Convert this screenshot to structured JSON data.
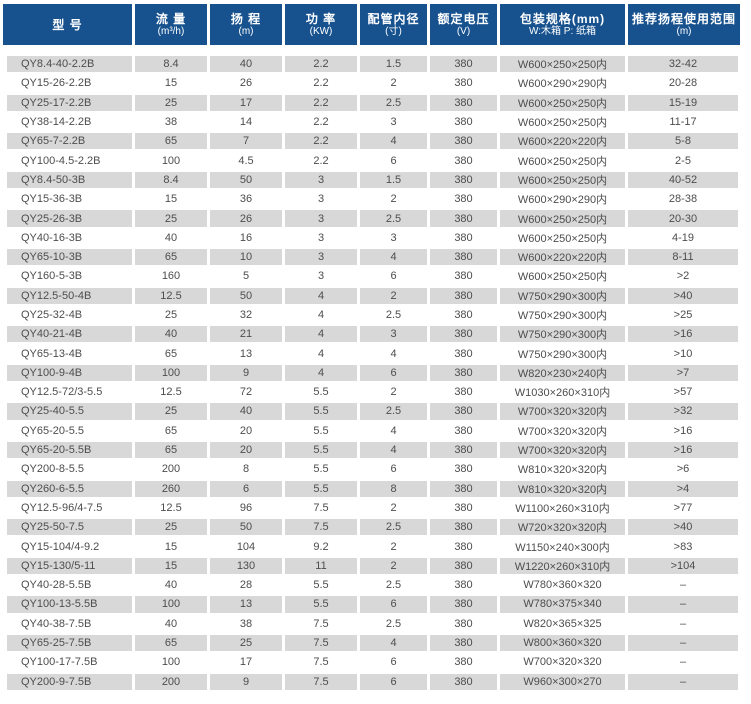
{
  "colors": {
    "header_bg": "#17528f",
    "header_text": "#ffffff",
    "row_alt_bg": "#d8d8d8",
    "row_bg": "#ffffff",
    "body_text": "#4d4d4d"
  },
  "chart_data": {
    "type": "table",
    "columns": [
      {
        "id": "model",
        "label": "型 号",
        "unit": ""
      },
      {
        "id": "flow",
        "label": "流 量",
        "unit": "(m³/h)"
      },
      {
        "id": "head",
        "label": "扬 程",
        "unit": "(m)"
      },
      {
        "id": "power",
        "label": "功 率",
        "unit": "(KW)"
      },
      {
        "id": "pipe",
        "label": "配管内径",
        "unit": "(寸)"
      },
      {
        "id": "voltage",
        "label": "额定电压",
        "unit": "(V)"
      },
      {
        "id": "packing",
        "label": "包装规格(mm)",
        "unit": "W:木箱 P: 纸箱"
      },
      {
        "id": "range",
        "label": "推荐扬程使用范围",
        "unit": "(m)"
      }
    ],
    "rows": [
      [
        "QY8.4-40-2.2B",
        "8.4",
        "40",
        "2.2",
        "1.5",
        "380",
        "W600×250×250内",
        "32-42"
      ],
      [
        "QY15-26-2.2B",
        "15",
        "26",
        "2.2",
        "2",
        "380",
        "W600×290×290内",
        "20-28"
      ],
      [
        "QY25-17-2.2B",
        "25",
        "17",
        "2.2",
        "2.5",
        "380",
        "W600×250×250内",
        "15-19"
      ],
      [
        "QY38-14-2.2B",
        "38",
        "14",
        "2.2",
        "3",
        "380",
        "W600×250×250内",
        "11-17"
      ],
      [
        "QY65-7-2.2B",
        "65",
        "7",
        "2.2",
        "4",
        "380",
        "W600×220×220内",
        "5-8"
      ],
      [
        "QY100-4.5-2.2B",
        "100",
        "4.5",
        "2.2",
        "6",
        "380",
        "W600×250×250内",
        "2-5"
      ],
      [
        "QY8.4-50-3B",
        "8.4",
        "50",
        "3",
        "1.5",
        "380",
        "W600×250×250内",
        "40-52"
      ],
      [
        "QY15-36-3B",
        "15",
        "36",
        "3",
        "2",
        "380",
        "W600×290×290内",
        "28-38"
      ],
      [
        "QY25-26-3B",
        "25",
        "26",
        "3",
        "2.5",
        "380",
        "W600×250×250内",
        "20-30"
      ],
      [
        "QY40-16-3B",
        "40",
        "16",
        "3",
        "3",
        "380",
        "W600×250×250内",
        "4-19"
      ],
      [
        "QY65-10-3B",
        "65",
        "10",
        "3",
        "4",
        "380",
        "W600×220×220内",
        "8-11"
      ],
      [
        "QY160-5-3B",
        "160",
        "5",
        "3",
        "6",
        "380",
        "W600×250×250内",
        ">2"
      ],
      [
        "QY12.5-50-4B",
        "12.5",
        "50",
        "4",
        "2",
        "380",
        "W750×290×300内",
        ">40"
      ],
      [
        "QY25-32-4B",
        "25",
        "32",
        "4",
        "2.5",
        "380",
        "W750×290×300内",
        ">25"
      ],
      [
        "QY40-21-4B",
        "40",
        "21",
        "4",
        "3",
        "380",
        "W750×290×300内",
        ">16"
      ],
      [
        "QY65-13-4B",
        "65",
        "13",
        "4",
        "4",
        "380",
        "W750×290×300内",
        ">10"
      ],
      [
        "QY100-9-4B",
        "100",
        "9",
        "4",
        "6",
        "380",
        "W820×230×240内",
        ">7"
      ],
      [
        "QY12.5-72/3-5.5",
        "12.5",
        "72",
        "5.5",
        "2",
        "380",
        "W1030×260×310内",
        ">57"
      ],
      [
        "QY25-40-5.5",
        "25",
        "40",
        "5.5",
        "2.5",
        "380",
        "W700×320×320内",
        ">32"
      ],
      [
        "QY65-20-5.5",
        "65",
        "20",
        "5.5",
        "4",
        "380",
        "W700×320×320内",
        ">16"
      ],
      [
        "QY65-20-5.5B",
        "65",
        "20",
        "5.5",
        "4",
        "380",
        "W700×320×320内",
        ">16"
      ],
      [
        "QY200-8-5.5",
        "200",
        "8",
        "5.5",
        "6",
        "380",
        "W810×320×320内",
        ">6"
      ],
      [
        "QY260-6-5.5",
        "260",
        "6",
        "5.5",
        "8",
        "380",
        "W810×320×320内",
        ">4"
      ],
      [
        "QY12.5-96/4-7.5",
        "12.5",
        "96",
        "7.5",
        "2",
        "380",
        "W1100×260×310内",
        ">77"
      ],
      [
        "QY25-50-7.5",
        "25",
        "50",
        "7.5",
        "2.5",
        "380",
        "W720×320×320内",
        ">40"
      ],
      [
        "QY15-104/4-9.2",
        "15",
        "104",
        "9.2",
        "2",
        "380",
        "W1150×240×300内",
        ">83"
      ],
      [
        "QY15-130/5-11",
        "15",
        "130",
        "11",
        "2",
        "380",
        "W1220×260×310内",
        ">104"
      ],
      [
        "QY40-28-5.5B",
        "40",
        "28",
        "5.5",
        "2.5",
        "380",
        "W780×360×320",
        "–"
      ],
      [
        "QY100-13-5.5B",
        "100",
        "13",
        "5.5",
        "6",
        "380",
        "W780×375×340",
        "–"
      ],
      [
        "QY40-38-7.5B",
        "40",
        "38",
        "7.5",
        "2.5",
        "380",
        "W820×365×325",
        "–"
      ],
      [
        "QY65-25-7.5B",
        "65",
        "25",
        "7.5",
        "4",
        "380",
        "W800×360×320",
        "–"
      ],
      [
        "QY100-17-7.5B",
        "100",
        "17",
        "7.5",
        "6",
        "380",
        "W700×320×320",
        "–"
      ],
      [
        "QY200-9-7.5B",
        "200",
        "9",
        "7.5",
        "6",
        "380",
        "W960×300×270",
        "–"
      ]
    ]
  }
}
